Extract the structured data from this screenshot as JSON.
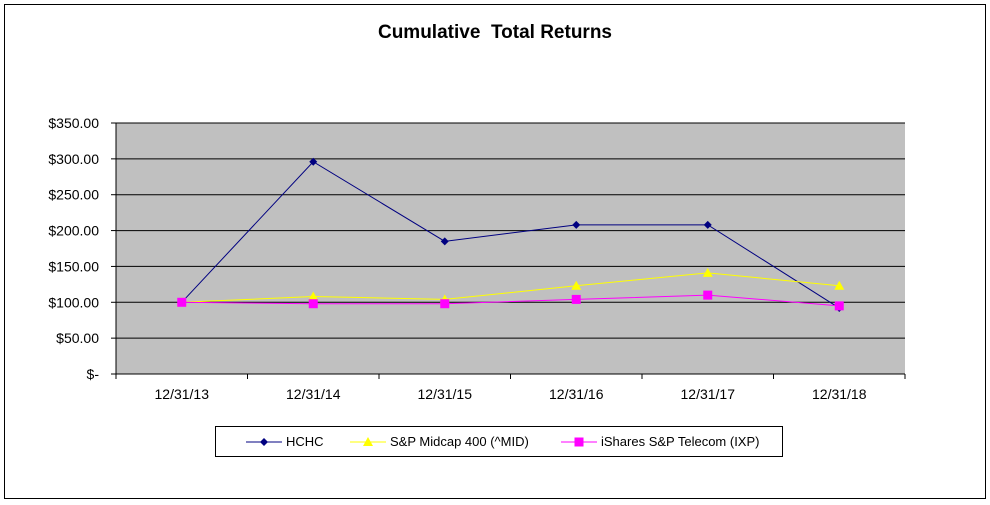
{
  "chart_data": {
    "type": "line",
    "title": "Cumulative  Total Returns",
    "categories": [
      "12/31/13",
      "12/31/14",
      "12/31/15",
      "12/31/16",
      "12/31/17",
      "12/31/18"
    ],
    "ylim": [
      0,
      350
    ],
    "yticks": [
      {
        "value": 0,
        "label": "$-"
      },
      {
        "value": 50,
        "label": "$50.00"
      },
      {
        "value": 100,
        "label": "$100.00"
      },
      {
        "value": 150,
        "label": "$150.00"
      },
      {
        "value": 200,
        "label": "$200.00"
      },
      {
        "value": 250,
        "label": "$250.00"
      },
      {
        "value": 300,
        "label": "$300.00"
      },
      {
        "value": 350,
        "label": "$350.00"
      }
    ],
    "grid": "horizontal",
    "plot_background": "#c0c0c0",
    "legend_position": "bottom",
    "series": [
      {
        "name": "HCHC",
        "color": "#000080",
        "marker": "diamond",
        "values": [
          100,
          296,
          185,
          208,
          208,
          92
        ]
      },
      {
        "name": "S&P Midcap 400 (^MID)",
        "color": "#ffff00",
        "marker": "triangle",
        "values": [
          100,
          108,
          104,
          123,
          141,
          123
        ]
      },
      {
        "name": "iShares S&P Telecom (IXP)",
        "color": "#ff00ff",
        "marker": "square",
        "values": [
          100,
          98,
          98,
          104,
          110,
          95
        ]
      }
    ]
  }
}
